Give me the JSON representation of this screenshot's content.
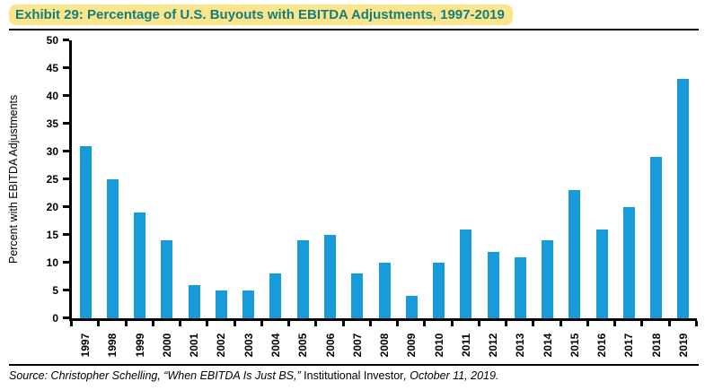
{
  "header": {
    "title": "Exhibit 29: Percentage of U.S. Buyouts with EBITDA Adjustments, 1997-2019"
  },
  "colors": {
    "bar": "#189CD9",
    "title_text": "#157E7C",
    "title_highlight": "#FAE58C",
    "axis": "#000000"
  },
  "chart_data": {
    "type": "bar",
    "categories": [
      "1997",
      "1998",
      "1999",
      "2000",
      "2001",
      "2002",
      "2003",
      "2004",
      "2005",
      "2006",
      "2007",
      "2008",
      "2009",
      "2010",
      "2011",
      "2012",
      "2013",
      "2014",
      "2015",
      "2016",
      "2017",
      "2018",
      "2019"
    ],
    "values": [
      31,
      25,
      19,
      14,
      6,
      5,
      5,
      8,
      14,
      15,
      8,
      10,
      4,
      10,
      16,
      12,
      11,
      14,
      23,
      16,
      20,
      29,
      43
    ],
    "title": "Exhibit 29: Percentage of U.S. Buyouts with EBITDA Adjustments, 1997-2019",
    "xlabel": "",
    "ylabel": "Percent with EBITDA Adjustments",
    "ylim": [
      0,
      50
    ],
    "ytick_interval": 5,
    "grid": false,
    "legend": false,
    "bar_color": "#189CD9"
  },
  "source": {
    "prefix": "Source: Christopher Schelling, “When EBITDA Is Just BS,” ",
    "publication": "Institutional Investor",
    "suffix": ", October 11, 2019."
  }
}
